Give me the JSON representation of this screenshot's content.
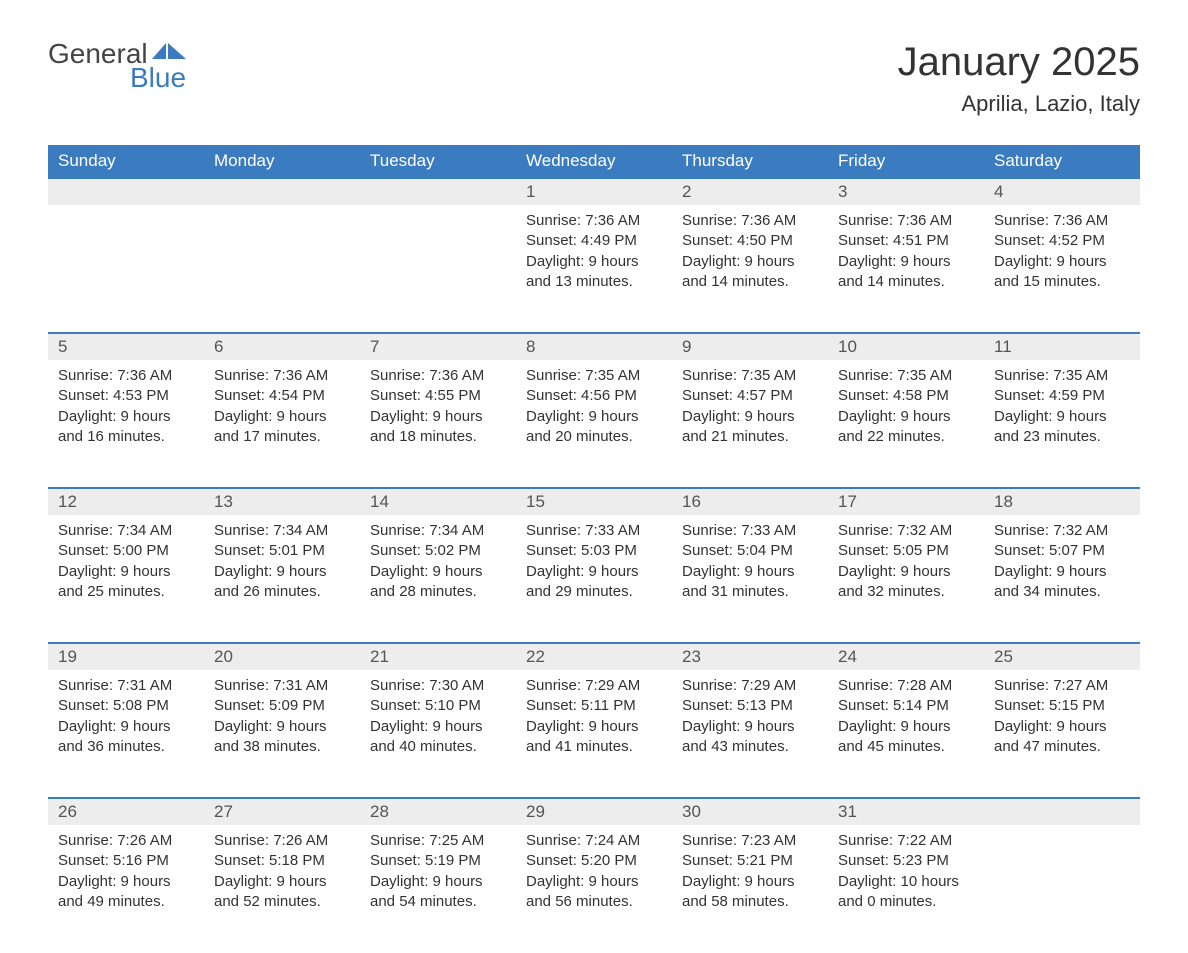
{
  "brand": {
    "word1": "General",
    "word2": "Blue",
    "flag_color": "#3b7bbf"
  },
  "title": "January 2025",
  "location": "Aprilia, Lazio, Italy",
  "colors": {
    "header_bg": "#3b7bbf",
    "header_text": "#ffffff",
    "daynum_bg": "#ededed",
    "row_border": "#3b7bbf",
    "body_text": "#333333",
    "page_bg": "#ffffff"
  },
  "typography": {
    "title_fontsize": 40,
    "location_fontsize": 22,
    "header_fontsize": 17,
    "cell_fontsize": 15
  },
  "weekdays": [
    "Sunday",
    "Monday",
    "Tuesday",
    "Wednesday",
    "Thursday",
    "Friday",
    "Saturday"
  ],
  "weeks": [
    [
      null,
      null,
      null,
      {
        "n": "1",
        "sunrise": "7:36 AM",
        "sunset": "4:49 PM",
        "daylight": "9 hours and 13 minutes."
      },
      {
        "n": "2",
        "sunrise": "7:36 AM",
        "sunset": "4:50 PM",
        "daylight": "9 hours and 14 minutes."
      },
      {
        "n": "3",
        "sunrise": "7:36 AM",
        "sunset": "4:51 PM",
        "daylight": "9 hours and 14 minutes."
      },
      {
        "n": "4",
        "sunrise": "7:36 AM",
        "sunset": "4:52 PM",
        "daylight": "9 hours and 15 minutes."
      }
    ],
    [
      {
        "n": "5",
        "sunrise": "7:36 AM",
        "sunset": "4:53 PM",
        "daylight": "9 hours and 16 minutes."
      },
      {
        "n": "6",
        "sunrise": "7:36 AM",
        "sunset": "4:54 PM",
        "daylight": "9 hours and 17 minutes."
      },
      {
        "n": "7",
        "sunrise": "7:36 AM",
        "sunset": "4:55 PM",
        "daylight": "9 hours and 18 minutes."
      },
      {
        "n": "8",
        "sunrise": "7:35 AM",
        "sunset": "4:56 PM",
        "daylight": "9 hours and 20 minutes."
      },
      {
        "n": "9",
        "sunrise": "7:35 AM",
        "sunset": "4:57 PM",
        "daylight": "9 hours and 21 minutes."
      },
      {
        "n": "10",
        "sunrise": "7:35 AM",
        "sunset": "4:58 PM",
        "daylight": "9 hours and 22 minutes."
      },
      {
        "n": "11",
        "sunrise": "7:35 AM",
        "sunset": "4:59 PM",
        "daylight": "9 hours and 23 minutes."
      }
    ],
    [
      {
        "n": "12",
        "sunrise": "7:34 AM",
        "sunset": "5:00 PM",
        "daylight": "9 hours and 25 minutes."
      },
      {
        "n": "13",
        "sunrise": "7:34 AM",
        "sunset": "5:01 PM",
        "daylight": "9 hours and 26 minutes."
      },
      {
        "n": "14",
        "sunrise": "7:34 AM",
        "sunset": "5:02 PM",
        "daylight": "9 hours and 28 minutes."
      },
      {
        "n": "15",
        "sunrise": "7:33 AM",
        "sunset": "5:03 PM",
        "daylight": "9 hours and 29 minutes."
      },
      {
        "n": "16",
        "sunrise": "7:33 AM",
        "sunset": "5:04 PM",
        "daylight": "9 hours and 31 minutes."
      },
      {
        "n": "17",
        "sunrise": "7:32 AM",
        "sunset": "5:05 PM",
        "daylight": "9 hours and 32 minutes."
      },
      {
        "n": "18",
        "sunrise": "7:32 AM",
        "sunset": "5:07 PM",
        "daylight": "9 hours and 34 minutes."
      }
    ],
    [
      {
        "n": "19",
        "sunrise": "7:31 AM",
        "sunset": "5:08 PM",
        "daylight": "9 hours and 36 minutes."
      },
      {
        "n": "20",
        "sunrise": "7:31 AM",
        "sunset": "5:09 PM",
        "daylight": "9 hours and 38 minutes."
      },
      {
        "n": "21",
        "sunrise": "7:30 AM",
        "sunset": "5:10 PM",
        "daylight": "9 hours and 40 minutes."
      },
      {
        "n": "22",
        "sunrise": "7:29 AM",
        "sunset": "5:11 PM",
        "daylight": "9 hours and 41 minutes."
      },
      {
        "n": "23",
        "sunrise": "7:29 AM",
        "sunset": "5:13 PM",
        "daylight": "9 hours and 43 minutes."
      },
      {
        "n": "24",
        "sunrise": "7:28 AM",
        "sunset": "5:14 PM",
        "daylight": "9 hours and 45 minutes."
      },
      {
        "n": "25",
        "sunrise": "7:27 AM",
        "sunset": "5:15 PM",
        "daylight": "9 hours and 47 minutes."
      }
    ],
    [
      {
        "n": "26",
        "sunrise": "7:26 AM",
        "sunset": "5:16 PM",
        "daylight": "9 hours and 49 minutes."
      },
      {
        "n": "27",
        "sunrise": "7:26 AM",
        "sunset": "5:18 PM",
        "daylight": "9 hours and 52 minutes."
      },
      {
        "n": "28",
        "sunrise": "7:25 AM",
        "sunset": "5:19 PM",
        "daylight": "9 hours and 54 minutes."
      },
      {
        "n": "29",
        "sunrise": "7:24 AM",
        "sunset": "5:20 PM",
        "daylight": "9 hours and 56 minutes."
      },
      {
        "n": "30",
        "sunrise": "7:23 AM",
        "sunset": "5:21 PM",
        "daylight": "9 hours and 58 minutes."
      },
      {
        "n": "31",
        "sunrise": "7:22 AM",
        "sunset": "5:23 PM",
        "daylight": "10 hours and 0 minutes."
      },
      null
    ]
  ],
  "labels": {
    "sunrise": "Sunrise: ",
    "sunset": "Sunset: ",
    "daylight": "Daylight: "
  }
}
